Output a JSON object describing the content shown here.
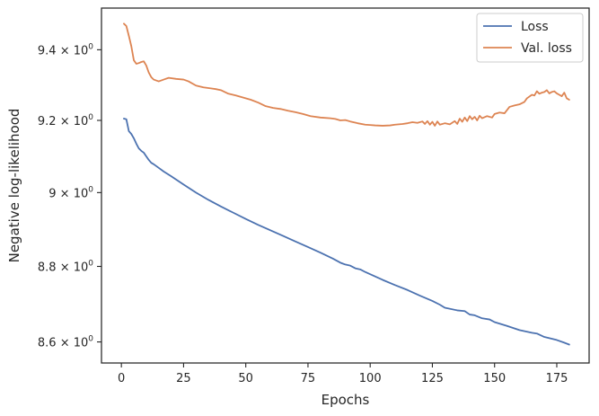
{
  "chart_data": {
    "type": "line",
    "xlabel": "Epochs",
    "ylabel": "Negative log-likelihood",
    "xlim": [
      -8,
      188
    ],
    "ylim": [
      8.545,
      9.52
    ],
    "yscale": "log",
    "grid": false,
    "legend_position": "top-right",
    "x_ticks": [
      0,
      25,
      50,
      75,
      100,
      125,
      150,
      175
    ],
    "x_tick_labels": [
      "0",
      "25",
      "50",
      "75",
      "100",
      "125",
      "150",
      "175"
    ],
    "y_ticks": [
      8.6,
      8.8,
      9.0,
      9.2,
      9.4
    ],
    "y_tick_labels": [
      {
        "base": "8.6 × 10",
        "exp": "0"
      },
      {
        "base": "8.8 × 10",
        "exp": "0"
      },
      {
        "base": "9 × 10",
        "exp": "0"
      },
      {
        "base": "9.2 × 10",
        "exp": "0"
      },
      {
        "base": "9.4 × 10",
        "exp": "0"
      }
    ],
    "series": [
      {
        "name": "Loss",
        "color": "#4c72b0",
        "points": [
          [
            1,
            9.205
          ],
          [
            2,
            9.203
          ],
          [
            3,
            9.17
          ],
          [
            4,
            9.162
          ],
          [
            5,
            9.15
          ],
          [
            6,
            9.135
          ],
          [
            7,
            9.122
          ],
          [
            8,
            9.115
          ],
          [
            9,
            9.11
          ],
          [
            10,
            9.1
          ],
          [
            11,
            9.09
          ],
          [
            12,
            9.082
          ],
          [
            13,
            9.078
          ],
          [
            15,
            9.068
          ],
          [
            17,
            9.058
          ],
          [
            20,
            9.045
          ],
          [
            25,
            9.022
          ],
          [
            30,
            9.0
          ],
          [
            35,
            8.98
          ],
          [
            40,
            8.962
          ],
          [
            45,
            8.945
          ],
          [
            50,
            8.928
          ],
          [
            55,
            8.912
          ],
          [
            60,
            8.897
          ],
          [
            65,
            8.882
          ],
          [
            70,
            8.867
          ],
          [
            75,
            8.852
          ],
          [
            80,
            8.837
          ],
          [
            85,
            8.821
          ],
          [
            88,
            8.81
          ],
          [
            90,
            8.805
          ],
          [
            92,
            8.802
          ],
          [
            94,
            8.795
          ],
          [
            96,
            8.792
          ],
          [
            98,
            8.785
          ],
          [
            100,
            8.779
          ],
          [
            105,
            8.764
          ],
          [
            110,
            8.75
          ],
          [
            115,
            8.737
          ],
          [
            120,
            8.722
          ],
          [
            125,
            8.708
          ],
          [
            128,
            8.698
          ],
          [
            130,
            8.69
          ],
          [
            135,
            8.683
          ],
          [
            138,
            8.681
          ],
          [
            140,
            8.672
          ],
          [
            142,
            8.67
          ],
          [
            145,
            8.662
          ],
          [
            148,
            8.659
          ],
          [
            150,
            8.652
          ],
          [
            155,
            8.642
          ],
          [
            160,
            8.631
          ],
          [
            165,
            8.624
          ],
          [
            167,
            8.622
          ],
          [
            170,
            8.613
          ],
          [
            175,
            8.605
          ],
          [
            178,
            8.598
          ],
          [
            180,
            8.593
          ]
        ]
      },
      {
        "name": "Val. loss",
        "color": "#dd8452",
        "points": [
          [
            1,
            9.475
          ],
          [
            2,
            9.468
          ],
          [
            3,
            9.44
          ],
          [
            4,
            9.41
          ],
          [
            5,
            9.37
          ],
          [
            6,
            9.36
          ],
          [
            7,
            9.362
          ],
          [
            8,
            9.365
          ],
          [
            9,
            9.367
          ],
          [
            10,
            9.355
          ],
          [
            11,
            9.335
          ],
          [
            12,
            9.322
          ],
          [
            13,
            9.315
          ],
          [
            15,
            9.31
          ],
          [
            17,
            9.315
          ],
          [
            19,
            9.32
          ],
          [
            22,
            9.317
          ],
          [
            25,
            9.315
          ],
          [
            27,
            9.31
          ],
          [
            30,
            9.298
          ],
          [
            33,
            9.293
          ],
          [
            36,
            9.29
          ],
          [
            38,
            9.288
          ],
          [
            40,
            9.285
          ],
          [
            43,
            9.275
          ],
          [
            46,
            9.27
          ],
          [
            49,
            9.264
          ],
          [
            52,
            9.258
          ],
          [
            55,
            9.25
          ],
          [
            58,
            9.24
          ],
          [
            61,
            9.235
          ],
          [
            64,
            9.232
          ],
          [
            67,
            9.227
          ],
          [
            70,
            9.223
          ],
          [
            73,
            9.218
          ],
          [
            76,
            9.212
          ],
          [
            80,
            9.208
          ],
          [
            84,
            9.206
          ],
          [
            86,
            9.204
          ],
          [
            88,
            9.2
          ],
          [
            90,
            9.201
          ],
          [
            92,
            9.197
          ],
          [
            95,
            9.192
          ],
          [
            98,
            9.188
          ],
          [
            100,
            9.187
          ],
          [
            102,
            9.186
          ],
          [
            105,
            9.185
          ],
          [
            108,
            9.186
          ],
          [
            110,
            9.188
          ],
          [
            113,
            9.19
          ],
          [
            115,
            9.192
          ],
          [
            117,
            9.195
          ],
          [
            119,
            9.193
          ],
          [
            121,
            9.197
          ],
          [
            122,
            9.19
          ],
          [
            123,
            9.198
          ],
          [
            124,
            9.188
          ],
          [
            125,
            9.196
          ],
          [
            126,
            9.185
          ],
          [
            127,
            9.197
          ],
          [
            128,
            9.188
          ],
          [
            130,
            9.192
          ],
          [
            132,
            9.189
          ],
          [
            134,
            9.198
          ],
          [
            135,
            9.19
          ],
          [
            136,
            9.205
          ],
          [
            137,
            9.196
          ],
          [
            138,
            9.208
          ],
          [
            139,
            9.198
          ],
          [
            140,
            9.212
          ],
          [
            141,
            9.203
          ],
          [
            142,
            9.21
          ],
          [
            143,
            9.2
          ],
          [
            144,
            9.213
          ],
          [
            145,
            9.206
          ],
          [
            147,
            9.212
          ],
          [
            149,
            9.208
          ],
          [
            150,
            9.218
          ],
          [
            152,
            9.222
          ],
          [
            154,
            9.22
          ],
          [
            156,
            9.238
          ],
          [
            158,
            9.242
          ],
          [
            160,
            9.245
          ],
          [
            162,
            9.252
          ],
          [
            163,
            9.262
          ],
          [
            165,
            9.272
          ],
          [
            166,
            9.27
          ],
          [
            167,
            9.282
          ],
          [
            168,
            9.275
          ],
          [
            169,
            9.278
          ],
          [
            170,
            9.28
          ],
          [
            171,
            9.285
          ],
          [
            172,
            9.276
          ],
          [
            173,
            9.28
          ],
          [
            174,
            9.282
          ],
          [
            175,
            9.276
          ],
          [
            176,
            9.272
          ],
          [
            177,
            9.268
          ],
          [
            178,
            9.278
          ],
          [
            179,
            9.262
          ],
          [
            180,
            9.258
          ]
        ]
      }
    ]
  }
}
